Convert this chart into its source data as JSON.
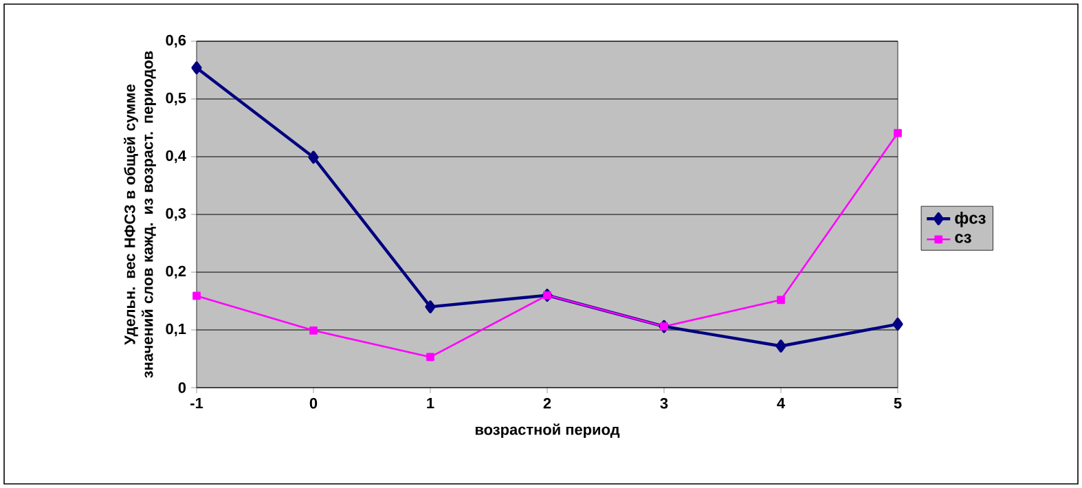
{
  "chart_data": {
    "type": "line",
    "xlabel": "возрастной период",
    "ylabel": "Удельн. вес НФСЗ в общей сумме значений слов кажд. из возраст. периодов",
    "categories": [
      "-1",
      "0",
      "1",
      "2",
      "3",
      "4",
      "5"
    ],
    "series": [
      {
        "name": "фсз",
        "color": "#000080",
        "marker": "diamond",
        "values": [
          0.554,
          0.399,
          0.14,
          0.16,
          0.106,
          0.072,
          0.11
        ]
      },
      {
        "name": "сз",
        "color": "#ff00ff",
        "marker": "square",
        "values": [
          0.159,
          0.099,
          0.053,
          0.16,
          0.106,
          0.152,
          0.441
        ]
      }
    ],
    "ylim": [
      0,
      0.6
    ],
    "yticks": [
      {
        "value": 0,
        "label": "0"
      },
      {
        "value": 0.1,
        "label": "0,1"
      },
      {
        "value": 0.2,
        "label": "0,2"
      },
      {
        "value": 0.3,
        "label": "0,3"
      },
      {
        "value": 0.4,
        "label": "0,4"
      },
      {
        "value": 0.5,
        "label": "0,5"
      },
      {
        "value": 0.6,
        "label": "0,6"
      }
    ],
    "grid": "y",
    "legend": "right"
  }
}
